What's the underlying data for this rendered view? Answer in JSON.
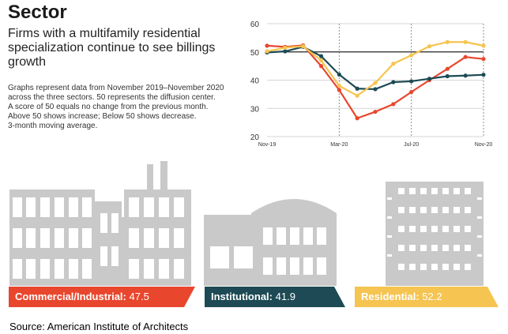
{
  "header": {
    "title": "Sector",
    "subtitle": "Firms with a multifamily residential specialization continue to see billings growth"
  },
  "notes": [
    "Graphs represent data from November 2019–November 2020",
    "across the three sectors. 50 represents the diffusion center.",
    "A score of 50 equals no change from the previous month.",
    "Above 50 shows increase; Below 50 shows decrease.",
    "3-month moving average."
  ],
  "chart_data": {
    "type": "line",
    "title": "",
    "xlabel": "",
    "ylabel": "",
    "ylim": [
      20,
      60
    ],
    "yticks": [
      20,
      30,
      40,
      50,
      60
    ],
    "x": [
      "Nov-19",
      "Dec-19",
      "Jan-20",
      "Feb-20",
      "Mar-20",
      "Apr-20",
      "May-20",
      "Jun-20",
      "Jul-20",
      "Aug-20",
      "Sep-20",
      "Oct-20",
      "Nov-20"
    ],
    "xtick_labels": {
      "0": "Nov-19",
      "4": "Mar-20",
      "8": "Jul-20",
      "12": "Nov-20"
    },
    "reference_line": 50,
    "vertical_guides": [
      4,
      8,
      12
    ],
    "series": [
      {
        "name": "Commercial/Industrial",
        "color": "#e8472e",
        "values": [
          52.2,
          51.8,
          52.3,
          45.0,
          36.5,
          26.5,
          28.8,
          31.5,
          35.8,
          40.0,
          44.0,
          48.2,
          47.5
        ]
      },
      {
        "name": "Institutional",
        "color": "#1d4a54",
        "values": [
          49.8,
          50.2,
          51.8,
          48.5,
          42.0,
          37.0,
          36.8,
          39.3,
          39.6,
          40.5,
          41.4,
          41.6,
          41.9
        ]
      },
      {
        "name": "Residential",
        "color": "#f5c451",
        "values": [
          50.2,
          51.5,
          52.0,
          47.0,
          38.0,
          34.5,
          39.0,
          45.8,
          48.8,
          52.0,
          53.5,
          53.5,
          52.2
        ]
      }
    ]
  },
  "sectors": [
    {
      "label": "Commercial/Industrial:",
      "value": "47.5"
    },
    {
      "label": "Institutional:",
      "value": "41.9"
    },
    {
      "label": "Residential:",
      "value": "52.2"
    }
  ],
  "colors": {
    "commercial": "#e8472e",
    "institutional": "#1d4a54",
    "residential": "#f5c451",
    "building": "#c9c9c9"
  },
  "source": "Source:  American Institute of Architects"
}
